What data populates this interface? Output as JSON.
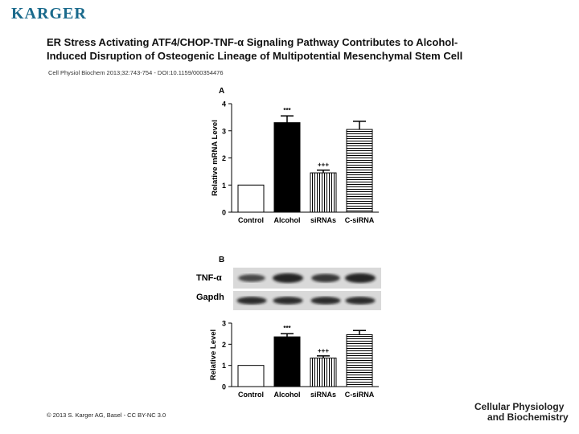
{
  "header": {
    "logo": "KARGER",
    "title_line1": "ER Stress Activating ATF4/CHOP-TNF-α Signaling Pathway Contributes to Alcohol-",
    "title_line2": "Induced Disruption of Osteogenic Lineage of Multipotential Mesenchymal Stem Cell",
    "citation": "Cell Physiol Biochem 2013;32:743-754 - DOI:10.1159/000354476"
  },
  "footer": {
    "copyright": "© 2013 S. Karger AG, Basel - CC BY-NC 3.0",
    "journal_line1": "Cellular Physiology",
    "journal_line2": "and Biochemistry"
  },
  "colors": {
    "logo": "#1a6a8c",
    "bar_outline": "#000000",
    "blot_bg": "#d9d9d9",
    "band": "#1c1c1c"
  },
  "blot": {
    "labels": [
      "TNF-α",
      "Gapdh"
    ],
    "tnf_band_intensity": [
      0.55,
      1.0,
      0.75,
      1.0
    ],
    "gapdh_band_intensity": [
      0.9,
      0.9,
      0.9,
      0.9
    ]
  },
  "chart_data": [
    {
      "type": "bar",
      "panel": "A",
      "categories": [
        "Control",
        "Alcohol",
        "siRNAs",
        "C-siRNA"
      ],
      "values": [
        1.0,
        3.3,
        1.45,
        3.05
      ],
      "errors": [
        0,
        0.25,
        0.1,
        0.3
      ],
      "annotations": [
        "",
        "***",
        "+++",
        ""
      ],
      "fills": [
        "white",
        "black",
        "vertical-stripes",
        "horizontal-stripes"
      ],
      "ylabel": "Relative mRNA Level",
      "ylim": [
        0,
        4
      ],
      "yticks": [
        "0",
        "1",
        "2",
        "3",
        "4"
      ]
    },
    {
      "type": "bar",
      "panel": "B",
      "categories": [
        "Control",
        "Alcohol",
        "siRNAs",
        "C-siRNA"
      ],
      "values": [
        1.0,
        2.35,
        1.35,
        2.45
      ],
      "errors": [
        0,
        0.15,
        0.1,
        0.2
      ],
      "annotations": [
        "",
        "***",
        "+++",
        ""
      ],
      "fills": [
        "white",
        "black",
        "vertical-stripes",
        "horizontal-stripes"
      ],
      "ylabel": "Relative Level",
      "ylim": [
        0,
        3
      ],
      "yticks": [
        "0",
        "1",
        "2",
        "3"
      ]
    }
  ]
}
